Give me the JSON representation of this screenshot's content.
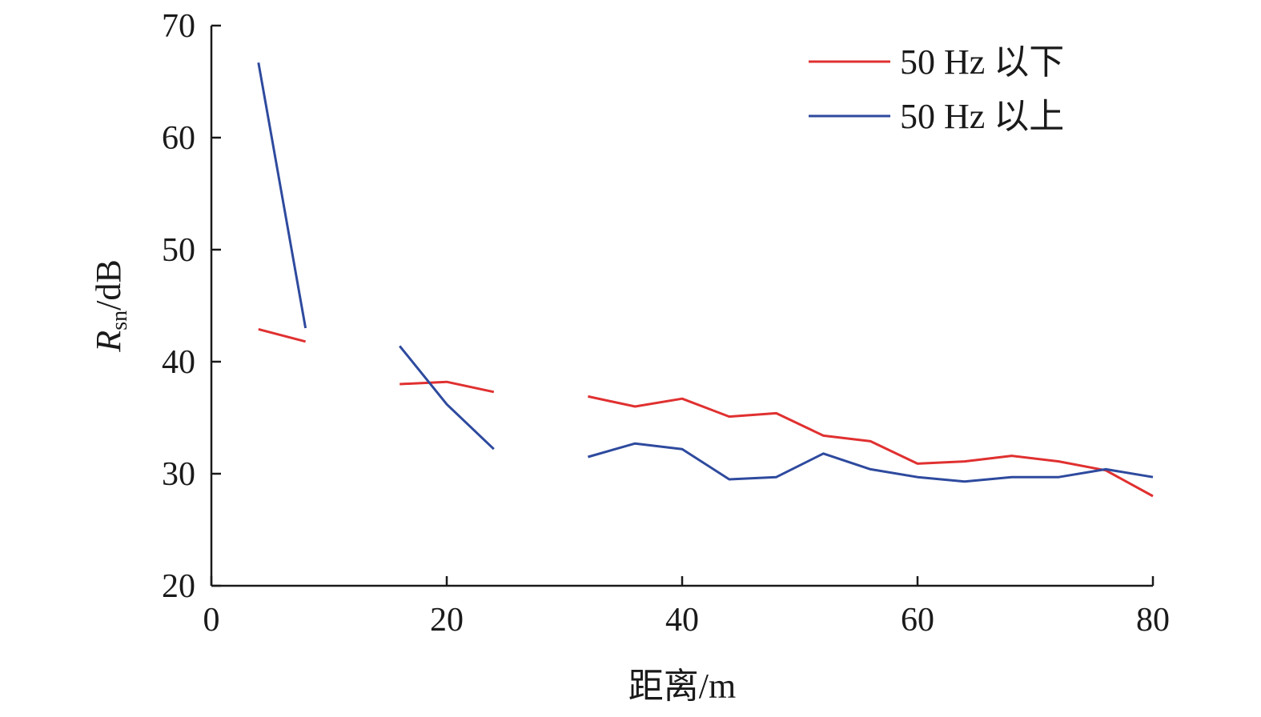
{
  "chart_data": {
    "type": "line",
    "xlabel": "距离/m",
    "ylabel_main": "R",
    "ylabel_sub": "sn",
    "ylabel_rest": "/dB",
    "xlim": [
      0,
      80
    ],
    "ylim": [
      20,
      70
    ],
    "xticks": [
      0,
      20,
      40,
      60,
      80
    ],
    "yticks": [
      20,
      30,
      40,
      50,
      60,
      70
    ],
    "grid": false,
    "legend_position": "top-right",
    "series": [
      {
        "name": "50 Hz 以下",
        "color": "#e03030",
        "segments": [
          [
            [
              4,
              42.9
            ],
            [
              8,
              41.8
            ]
          ],
          [
            [
              16,
              38.0
            ],
            [
              20,
              38.2
            ],
            [
              24,
              37.3
            ]
          ],
          [
            [
              32,
              36.9
            ],
            [
              36,
              36.0
            ],
            [
              40,
              36.7
            ],
            [
              44,
              35.1
            ],
            [
              48,
              35.4
            ],
            [
              52,
              33.4
            ],
            [
              56,
              32.9
            ],
            [
              60,
              30.9
            ],
            [
              64,
              31.1
            ],
            [
              68,
              31.6
            ],
            [
              72,
              31.1
            ],
            [
              76,
              30.3
            ],
            [
              80,
              28.0
            ]
          ]
        ]
      },
      {
        "name": "50 Hz 以上",
        "color": "#2e4a9e",
        "segments": [
          [
            [
              4,
              66.7
            ],
            [
              8,
              43.0
            ]
          ],
          [
            [
              16,
              41.4
            ],
            [
              20,
              36.2
            ],
            [
              24,
              32.2
            ]
          ],
          [
            [
              32,
              31.5
            ],
            [
              36,
              32.7
            ],
            [
              40,
              32.2
            ],
            [
              44,
              29.5
            ],
            [
              48,
              29.7
            ],
            [
              52,
              31.8
            ],
            [
              56,
              30.4
            ],
            [
              60,
              29.7
            ],
            [
              64,
              29.3
            ],
            [
              68,
              29.7
            ],
            [
              72,
              29.7
            ],
            [
              76,
              30.4
            ],
            [
              80,
              29.7
            ]
          ]
        ]
      }
    ]
  }
}
